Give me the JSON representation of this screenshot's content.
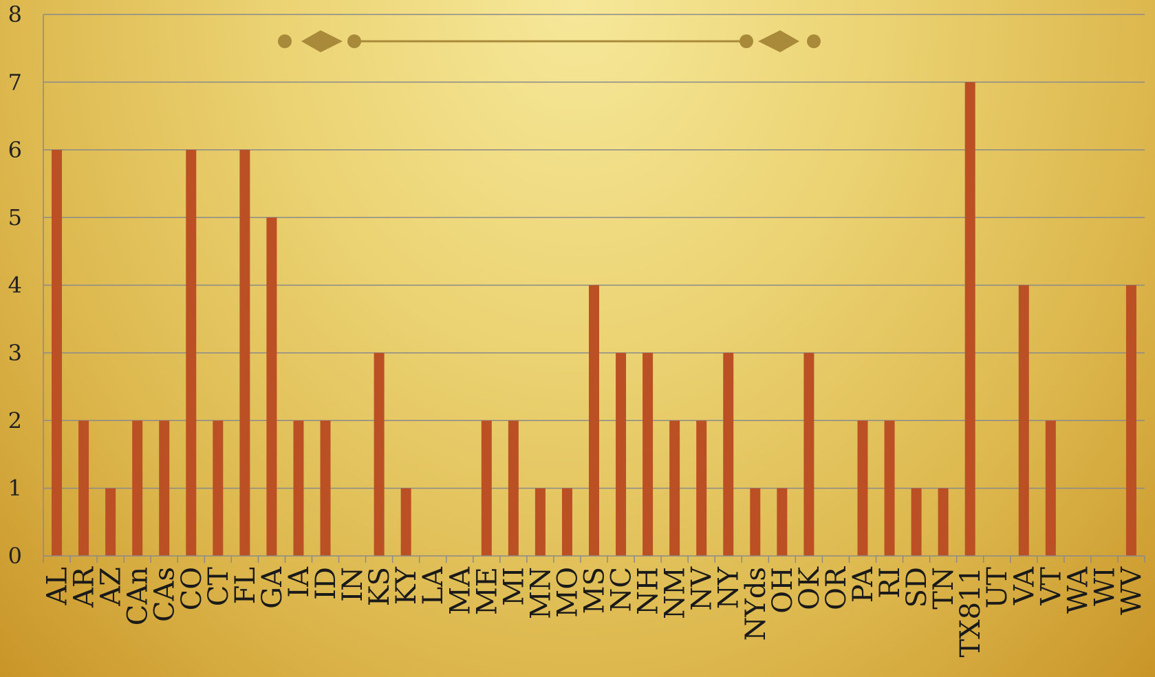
{
  "colors": {
    "bar": "#bc5025",
    "grid": "#8a8a8a",
    "ornament": "#a88a3a"
  },
  "icons": [
    "ornament-divider-icon"
  ],
  "chart_data": {
    "type": "bar",
    "title": "",
    "xlabel": "",
    "ylabel": "",
    "ylim": [
      0,
      8
    ],
    "yticks": [
      0,
      1,
      2,
      3,
      4,
      5,
      6,
      7,
      8
    ],
    "grid": true,
    "categories": [
      "AL",
      "AR",
      "AZ",
      "CAn",
      "CAs",
      "CO",
      "CT",
      "FL",
      "GA",
      "IA",
      "ID",
      "IN",
      "KS",
      "KY",
      "LA",
      "MA",
      "ME",
      "MI",
      "MN",
      "MO",
      "MS",
      "NC",
      "NH",
      "NM",
      "NV",
      "NY",
      "NYds",
      "OH",
      "OK",
      "OR",
      "PA",
      "RI",
      "SD",
      "TN",
      "TX811",
      "UT",
      "VA",
      "VT",
      "WA",
      "WI",
      "WV"
    ],
    "values": [
      6,
      2,
      1,
      2,
      2,
      6,
      2,
      6,
      5,
      2,
      2,
      0,
      3,
      1,
      0,
      0,
      2,
      2,
      1,
      1,
      4,
      3,
      3,
      2,
      2,
      3,
      1,
      1,
      3,
      0,
      2,
      2,
      1,
      1,
      7,
      0,
      4,
      2,
      0,
      0,
      4
    ]
  }
}
